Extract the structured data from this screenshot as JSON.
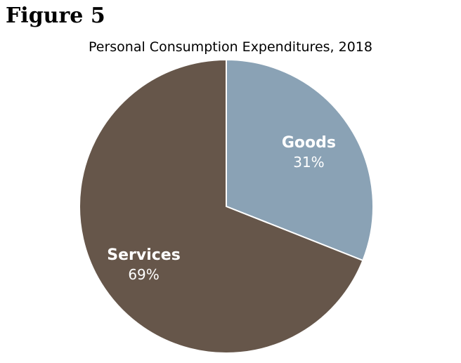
{
  "figure_label": "Figure 5",
  "chart_data": {
    "type": "pie",
    "title": "Personal Consumption Expenditures, 2018",
    "start_angle_deg": 0,
    "direction": "clockwise",
    "slices": [
      {
        "label": "Goods",
        "value": 31,
        "value_label": "31%",
        "color": "#8aa2b5"
      },
      {
        "label": "Services",
        "value": 69,
        "value_label": "69%",
        "color": "#66564a"
      }
    ]
  }
}
